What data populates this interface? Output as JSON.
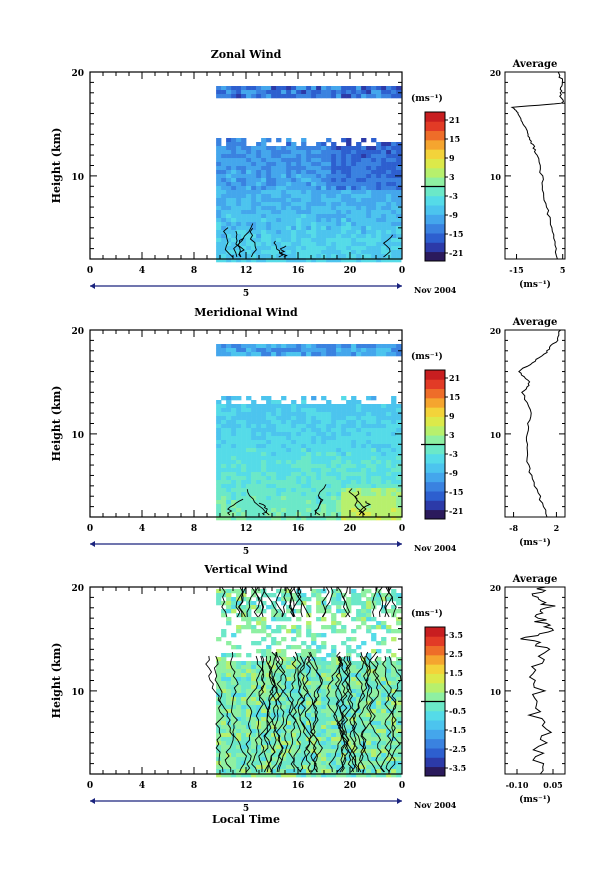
{
  "unit": "(ms⁻¹)",
  "date_label": "Nov 2004",
  "day_marker": "5",
  "xlabel_bottom": "Local Time",
  "ylabel": "Height (km)",
  "avg_title": "Average",
  "x_ticks": [
    "0",
    "4",
    "8",
    "12",
    "16",
    "20",
    "0"
  ],
  "y_ticks": [
    "20",
    "10"
  ],
  "chart_data": [
    {
      "type": "heatmap",
      "title": "Zonal Wind",
      "ylabel": "Height (km)",
      "x_range_hours": [
        0,
        24
      ],
      "y_range_km": [
        2,
        20
      ],
      "data_start_hour": 9.7,
      "colorbar": {
        "min": -24,
        "max": 24,
        "step": 3,
        "labels": [
          "21",
          "15",
          "9",
          "3",
          "-3",
          "-9",
          "-15",
          "-21"
        ]
      },
      "profile": {
        "title": "Average",
        "xlabel": "(ms⁻¹)",
        "xlim": [
          -20,
          6
        ],
        "x_ticks": [
          "-15",
          "5"
        ],
        "points": [
          [
            3,
            2
          ],
          [
            1,
            4
          ],
          [
            -1,
            6
          ],
          [
            -3,
            8
          ],
          [
            -4,
            10
          ],
          [
            -6,
            12
          ],
          [
            -8,
            13
          ],
          [
            -10,
            14
          ],
          [
            -12,
            15
          ],
          [
            -14,
            16
          ],
          [
            -17,
            16.6
          ],
          [
            5,
            17
          ],
          [
            4,
            18
          ],
          [
            5,
            19
          ],
          [
            3,
            20
          ]
        ]
      }
    },
    {
      "type": "heatmap",
      "title": "Meridional Wind",
      "ylabel": "Height (km)",
      "x_range_hours": [
        0,
        24
      ],
      "y_range_km": [
        2,
        20
      ],
      "data_start_hour": 9.7,
      "colorbar": {
        "min": -24,
        "max": 24,
        "step": 3,
        "labels": [
          "21",
          "15",
          "9",
          "3",
          "-3",
          "-9",
          "-15",
          "-21"
        ]
      },
      "profile": {
        "title": "Average",
        "xlabel": "(ms⁻¹)",
        "xlim": [
          -10,
          4
        ],
        "x_ticks": [
          "-8",
          "2"
        ],
        "points": [
          [
            0,
            2
          ],
          [
            -2,
            4
          ],
          [
            -4,
            6
          ],
          [
            -5,
            8
          ],
          [
            -5,
            10
          ],
          [
            -4,
            12
          ],
          [
            -6,
            14
          ],
          [
            -4,
            15
          ],
          [
            -7,
            16
          ],
          [
            -3,
            17
          ],
          [
            0,
            18
          ],
          [
            2,
            19
          ],
          [
            3,
            20
          ]
        ]
      }
    },
    {
      "type": "heatmap",
      "title": "Vertical Wind",
      "ylabel": "Height (km)",
      "xlabel": "Local Time",
      "x_range_hours": [
        0,
        24
      ],
      "y_range_km": [
        2,
        20
      ],
      "data_start_hour": 9.7,
      "colorbar": {
        "min": -4,
        "max": 4,
        "step": 0.5,
        "labels": [
          "3.5",
          "2.5",
          "1.5",
          "0.5",
          "-0.5",
          "-1.5",
          "-2.5",
          "-3.5"
        ]
      },
      "profile": {
        "title": "Average",
        "xlabel": "(ms⁻¹)",
        "xlim": [
          -0.15,
          0.1
        ],
        "x_ticks": [
          "-0.10",
          "0.05"
        ],
        "points": [
          [
            0.02,
            2
          ],
          [
            -0.02,
            4
          ],
          [
            0.03,
            6
          ],
          [
            -0.03,
            8
          ],
          [
            0.0,
            10
          ],
          [
            -0.04,
            12
          ],
          [
            0.03,
            14
          ],
          [
            -0.06,
            15
          ],
          [
            0.05,
            16
          ],
          [
            -0.02,
            17
          ],
          [
            0.04,
            18
          ],
          [
            -0.03,
            19
          ],
          [
            0.02,
            20
          ]
        ]
      }
    }
  ],
  "colors": {
    "colormap": [
      "#2b1a5c",
      "#2c3aa8",
      "#2d5fcf",
      "#3a82e0",
      "#44a6ec",
      "#4cc4ee",
      "#55dbe8",
      "#6be8c8",
      "#8ef0a2",
      "#b7f06d",
      "#dce94a",
      "#f3d33a",
      "#f5a52f",
      "#ee6d29",
      "#e23b26",
      "#c81e20"
    ]
  }
}
